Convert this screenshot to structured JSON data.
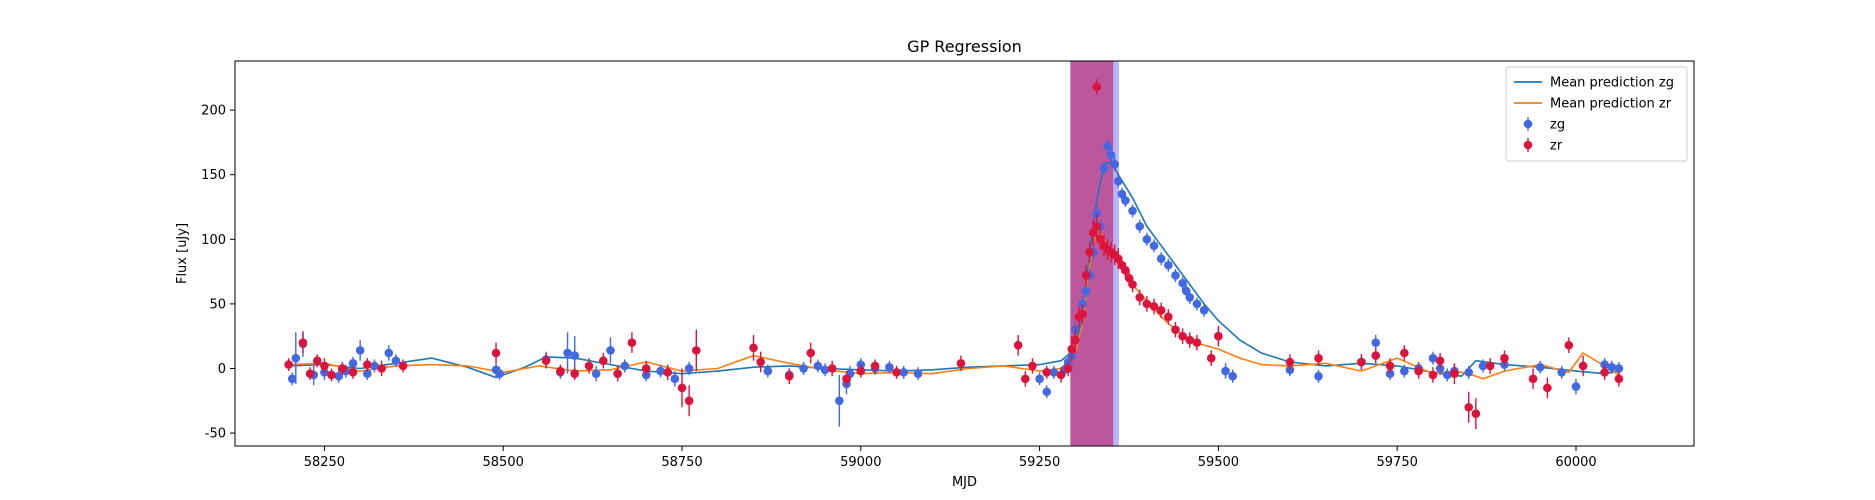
{
  "chart_data": {
    "type": "scatter",
    "title": "GP Regression",
    "xlabel": "MJD",
    "ylabel": "Flux [uJy]",
    "xlim": [
      58125,
      60165
    ],
    "ylim": [
      -60,
      238
    ],
    "xticks": [
      58250,
      58500,
      58750,
      59000,
      59250,
      59500,
      59750,
      60000
    ],
    "yticks": [
      -50,
      0,
      50,
      100,
      150,
      200
    ],
    "grid": false,
    "legend_position": "top-right",
    "shaded_regions": [
      {
        "x0": 59293,
        "x1": 59361,
        "color": "#7b7bff"
      },
      {
        "x0": 59293,
        "x1": 59353,
        "color": "#c2185b"
      }
    ],
    "series": [
      {
        "name": "Mean prediction zg",
        "kind": "line",
        "color": "#1f77b4",
        "x": [
          58200,
          58250,
          58300,
          58350,
          58400,
          58450,
          58490,
          58530,
          58560,
          58600,
          58650,
          58700,
          58750,
          58800,
          58850,
          58900,
          58950,
          59000,
          59050,
          59100,
          59150,
          59200,
          59250,
          59280,
          59300,
          59310,
          59320,
          59330,
          59340,
          59350,
          59360,
          59380,
          59400,
          59420,
          59440,
          59460,
          59480,
          59500,
          59530,
          59560,
          59600,
          59650,
          59700,
          59750,
          59800,
          59840,
          59860,
          59900,
          59950,
          60000,
          60040,
          60060
        ],
        "y": [
          2,
          3,
          0,
          4,
          8,
          1,
          -7,
          1,
          9,
          8,
          3,
          -2,
          -4,
          -2,
          1,
          2,
          0,
          -1,
          -2,
          -1,
          1,
          2,
          3,
          6,
          15,
          40,
          90,
          130,
          158,
          160,
          150,
          132,
          110,
          95,
          80,
          65,
          50,
          37,
          22,
          12,
          5,
          2,
          4,
          2,
          -3,
          -6,
          6,
          3,
          1,
          -2,
          -4,
          -2
        ]
      },
      {
        "name": "Mean prediction zr",
        "kind": "line",
        "color": "#ff7f0e",
        "x": [
          58200,
          58250,
          58300,
          58350,
          58400,
          58450,
          58500,
          58550,
          58600,
          58650,
          58700,
          58750,
          58800,
          58850,
          58900,
          58950,
          59000,
          59050,
          59100,
          59150,
          59200,
          59250,
          59280,
          59300,
          59310,
          59320,
          59330,
          59340,
          59350,
          59360,
          59380,
          59400,
          59420,
          59440,
          59460,
          59480,
          59500,
          59530,
          59560,
          59600,
          59650,
          59700,
          59750,
          59800,
          59830,
          59850,
          59870,
          59900,
          59950,
          59990,
          60010,
          60040,
          60060
        ],
        "y": [
          3,
          4,
          -2,
          2,
          3,
          2,
          -3,
          2,
          -2,
          -1,
          5,
          -2,
          0,
          10,
          4,
          -1,
          -4,
          -3,
          -4,
          0,
          2,
          -2,
          0,
          12,
          35,
          80,
          110,
          100,
          90,
          80,
          65,
          52,
          40,
          30,
          22,
          18,
          15,
          8,
          3,
          2,
          4,
          -2,
          8,
          -4,
          -2,
          -4,
          -8,
          -2,
          3,
          -3,
          12,
          2,
          -5
        ]
      },
      {
        "name": "zg",
        "kind": "errorbar-points",
        "color": "#4169e1",
        "x": [
          58205,
          58210,
          58220,
          58235,
          58250,
          58270,
          58280,
          58290,
          58300,
          58310,
          58320,
          58340,
          58350,
          58490,
          58495,
          58560,
          58580,
          58590,
          58600,
          58630,
          58650,
          58670,
          58700,
          58720,
          58740,
          58760,
          58870,
          58900,
          58920,
          58940,
          58950,
          58970,
          58980,
          58985,
          59000,
          59020,
          59040,
          59060,
          59080,
          59250,
          59260,
          59270,
          59285,
          59290,
          59295,
          59300,
          59305,
          59310,
          59315,
          59320,
          59325,
          59330,
          59335,
          59340,
          59345,
          59350,
          59355,
          59360,
          59365,
          59370,
          59380,
          59390,
          59400,
          59410,
          59420,
          59430,
          59440,
          59450,
          59455,
          59460,
          59470,
          59480,
          59500,
          59510,
          59520,
          59600,
          59640,
          59700,
          59720,
          59740,
          59760,
          59780,
          59800,
          59810,
          59820,
          59830,
          59850,
          59870,
          59900,
          59950,
          59980,
          60000,
          60040,
          60050,
          60060
        ],
        "y": [
          -8,
          8,
          19,
          -5,
          -3,
          -6,
          -2,
          4,
          14,
          -4,
          2,
          12,
          6,
          -1,
          -4,
          7,
          -3,
          12,
          10,
          -4,
          14,
          2,
          -5,
          -2,
          -8,
          0,
          -2,
          -5,
          0,
          2,
          -1,
          -25,
          -12,
          -4,
          3,
          0,
          1,
          -3,
          -4,
          -8,
          -18,
          -3,
          -1,
          5,
          10,
          30,
          40,
          50,
          60,
          72,
          90,
          120,
          110,
          155,
          172,
          165,
          158,
          145,
          135,
          130,
          122,
          110,
          100,
          95,
          85,
          80,
          72,
          66,
          60,
          55,
          50,
          45,
          25,
          -2,
          -6,
          -1,
          -6,
          5,
          20,
          -4,
          -2,
          0,
          8,
          0,
          -5,
          -2,
          -3,
          2,
          3,
          1,
          -3,
          -14,
          3,
          1,
          0
        ],
        "yerr": [
          5,
          20,
          10,
          8,
          6,
          5,
          5,
          5,
          8,
          5,
          5,
          6,
          5,
          5,
          5,
          6,
          5,
          16,
          15,
          6,
          10,
          5,
          5,
          5,
          6,
          5,
          5,
          5,
          5,
          5,
          5,
          20,
          8,
          6,
          5,
          5,
          5,
          5,
          5,
          5,
          5,
          5,
          5,
          5,
          6,
          6,
          6,
          6,
          5,
          5,
          6,
          5,
          5,
          5,
          5,
          6,
          5,
          5,
          5,
          5,
          5,
          5,
          5,
          5,
          5,
          5,
          5,
          5,
          5,
          5,
          5,
          5,
          6,
          6,
          5,
          5,
          5,
          6,
          6,
          5,
          5,
          5,
          5,
          5,
          5,
          5,
          5,
          5,
          5,
          5,
          5,
          6,
          5,
          5,
          5
        ]
      },
      {
        "name": "zr",
        "kind": "errorbar-points",
        "color": "#dc143c",
        "x": [
          58200,
          58220,
          58230,
          58240,
          58250,
          58260,
          58275,
          58290,
          58310,
          58330,
          58360,
          58490,
          58560,
          58580,
          58600,
          58620,
          58640,
          58660,
          58680,
          58700,
          58730,
          58750,
          58760,
          58770,
          58850,
          58860,
          58900,
          58930,
          58960,
          58980,
          59000,
          59020,
          59050,
          59140,
          59220,
          59230,
          59240,
          59260,
          59280,
          59290,
          59295,
          59300,
          59305,
          59310,
          59315,
          59320,
          59325,
          59330,
          59335,
          59340,
          59345,
          59350,
          59355,
          59360,
          59365,
          59370,
          59375,
          59380,
          59390,
          59400,
          59410,
          59420,
          59430,
          59440,
          59450,
          59460,
          59470,
          59490,
          59500,
          59600,
          59640,
          59700,
          59720,
          59740,
          59760,
          59780,
          59800,
          59810,
          59830,
          59850,
          59860,
          59880,
          59900,
          59940,
          59960,
          59990,
          60010,
          60040,
          60060
        ],
        "y": [
          3,
          20,
          -4,
          6,
          2,
          -5,
          0,
          -3,
          3,
          0,
          2,
          12,
          6,
          -2,
          -4,
          2,
          6,
          -4,
          20,
          0,
          -3,
          -15,
          -25,
          14,
          16,
          5,
          -6,
          12,
          0,
          -8,
          -2,
          2,
          -3,
          4,
          18,
          -8,
          2,
          -3,
          -5,
          0,
          15,
          22,
          40,
          42,
          72,
          90,
          105,
          110,
          100,
          95,
          92,
          90,
          88,
          85,
          80,
          76,
          70,
          65,
          55,
          50,
          48,
          45,
          40,
          30,
          25,
          22,
          20,
          8,
          25,
          5,
          8,
          5,
          10,
          2,
          12,
          -2,
          -5,
          6,
          -4,
          -30,
          -35,
          2,
          8,
          -8,
          -15,
          18,
          2,
          -3,
          -8
        ],
        "yerr": [
          5,
          8,
          5,
          5,
          6,
          5,
          5,
          5,
          5,
          6,
          5,
          8,
          6,
          5,
          5,
          6,
          6,
          6,
          8,
          6,
          6,
          15,
          12,
          16,
          10,
          8,
          6,
          8,
          6,
          6,
          5,
          5,
          5,
          6,
          8,
          6,
          6,
          5,
          6,
          6,
          10,
          10,
          8,
          8,
          8,
          8,
          10,
          10,
          8,
          8,
          8,
          8,
          8,
          8,
          6,
          6,
          6,
          6,
          6,
          6,
          6,
          6,
          6,
          6,
          6,
          6,
          6,
          6,
          8,
          6,
          6,
          6,
          6,
          6,
          6,
          6,
          6,
          6,
          8,
          12,
          12,
          6,
          6,
          8,
          8,
          6,
          8,
          6,
          6
        ]
      }
    ],
    "outlier_point": {
      "series": "zr",
      "x": 59330,
      "y": 218,
      "yerr": 6
    }
  }
}
